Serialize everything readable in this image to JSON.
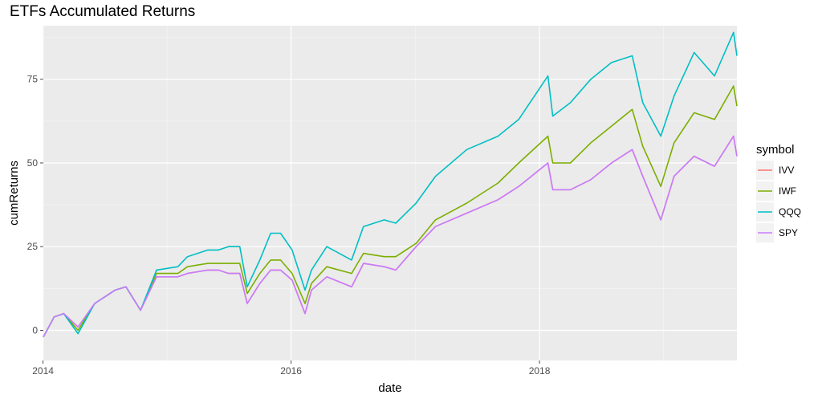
{
  "chart_data": {
    "type": "line",
    "title": "ETFs Accumulated Returns",
    "xlabel": "date",
    "ylabel": "cumReturns",
    "legend_title": "symbol",
    "legend_placement": "right",
    "grid": true,
    "xlim": [
      "2014-01-02",
      "2019-08-05"
    ],
    "ylim": [
      -9,
      91
    ],
    "x_ticks": [
      "2014",
      "2016",
      "2018"
    ],
    "y_ticks": [
      0,
      25,
      50,
      75
    ],
    "panel_background": "#ebebeb",
    "x": [
      "2014-01-02",
      "2014-02-03",
      "2014-03-03",
      "2014-04-14",
      "2014-06-02",
      "2014-08-01",
      "2014-09-02",
      "2014-10-15",
      "2014-12-01",
      "2015-02-02",
      "2015-03-02",
      "2015-05-01",
      "2015-06-01",
      "2015-07-01",
      "2015-08-03",
      "2015-08-25",
      "2015-10-01",
      "2015-11-02",
      "2015-12-01",
      "2016-01-04",
      "2016-02-11",
      "2016-03-01",
      "2016-04-15",
      "2016-06-27",
      "2016-08-01",
      "2016-10-01",
      "2016-11-04",
      "2017-01-03",
      "2017-03-01",
      "2017-06-01",
      "2017-09-01",
      "2017-11-01",
      "2018-01-26",
      "2018-02-09",
      "2018-04-02",
      "2018-06-01",
      "2018-08-01",
      "2018-10-01",
      "2018-11-01",
      "2018-12-24",
      "2019-02-01",
      "2019-04-01",
      "2019-05-31",
      "2019-07-26",
      "2019-08-05"
    ],
    "series": [
      {
        "name": "IVV",
        "color": "#f8766d",
        "values": [
          -2,
          4,
          5,
          1,
          8,
          12,
          13,
          6,
          16,
          16,
          17,
          18,
          18,
          17,
          17,
          8,
          14,
          18,
          18,
          15,
          5,
          12,
          16,
          13,
          20,
          19,
          18,
          25,
          31,
          35,
          39,
          43,
          50,
          42,
          42,
          45,
          50,
          54,
          46,
          33,
          46,
          52,
          49,
          58,
          52
        ]
      },
      {
        "name": "IWF",
        "color": "#7cae00",
        "values": [
          -2,
          4,
          5,
          0,
          8,
          12,
          13,
          6,
          17,
          17,
          19,
          20,
          20,
          20,
          20,
          11,
          17,
          21,
          21,
          17,
          8,
          14,
          19,
          17,
          23,
          22,
          22,
          26,
          33,
          38,
          44,
          50,
          58,
          50,
          50,
          56,
          61,
          66,
          55,
          43,
          56,
          65,
          63,
          73,
          67
        ]
      },
      {
        "name": "QQQ",
        "color": "#00bfc4",
        "values": [
          -2,
          4,
          5,
          -1,
          8,
          12,
          13,
          6,
          18,
          19,
          22,
          24,
          24,
          25,
          25,
          13,
          21,
          29,
          29,
          24,
          12,
          18,
          25,
          21,
          31,
          33,
          32,
          38,
          46,
          54,
          58,
          63,
          76,
          64,
          68,
          75,
          80,
          82,
          68,
          58,
          70,
          83,
          76,
          89,
          82
        ]
      },
      {
        "name": "SPY",
        "color": "#c77cff",
        "values": [
          -2,
          4,
          5,
          1,
          8,
          12,
          13,
          6,
          16,
          16,
          17,
          18,
          18,
          17,
          17,
          8,
          14,
          18,
          18,
          15,
          5,
          12,
          16,
          13,
          20,
          19,
          18,
          25,
          31,
          35,
          39,
          43,
          50,
          42,
          42,
          45,
          50,
          54,
          46,
          33,
          46,
          52,
          49,
          58,
          52
        ]
      }
    ]
  }
}
